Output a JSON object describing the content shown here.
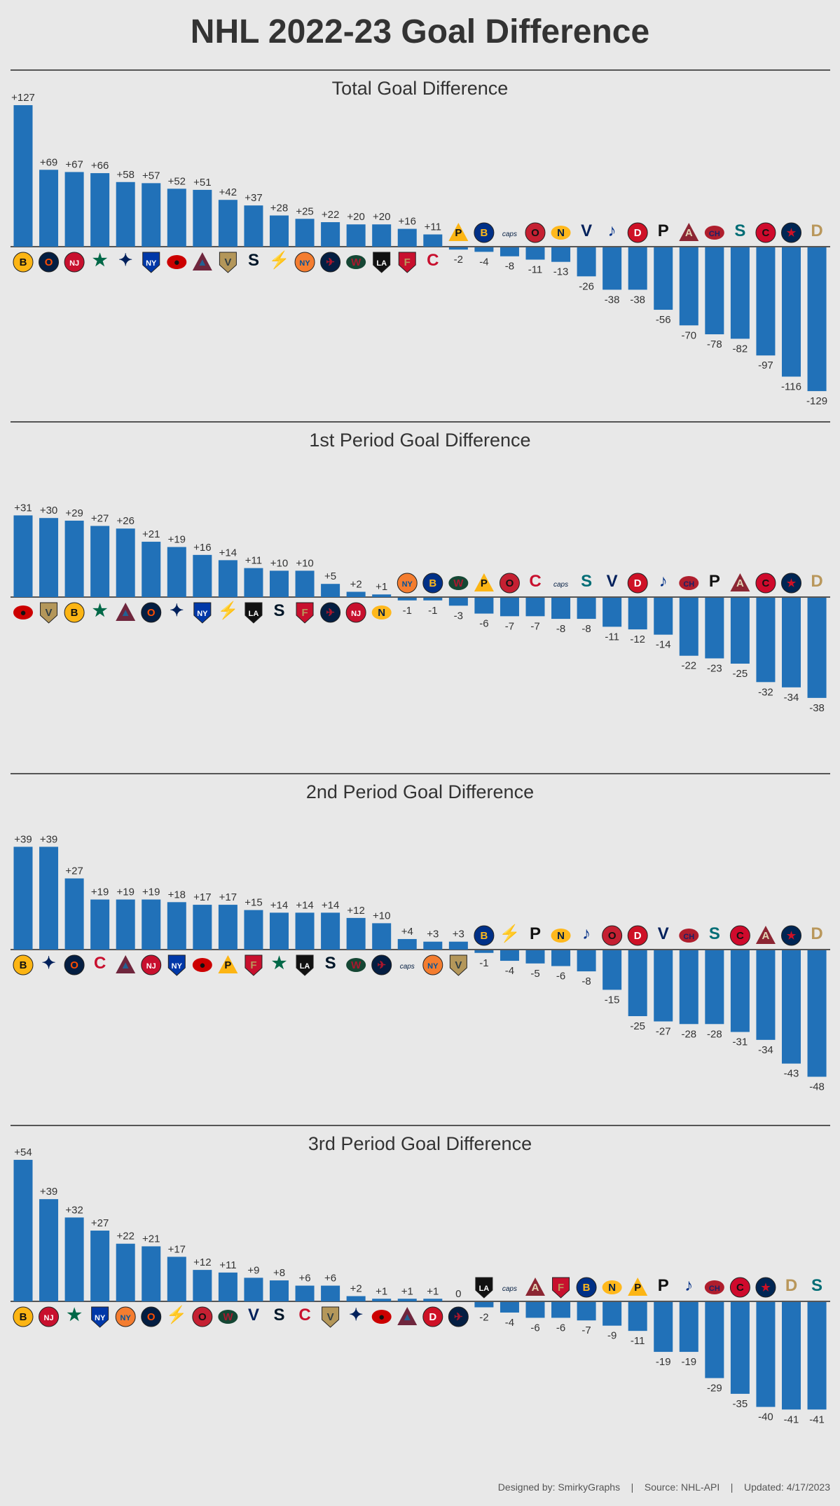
{
  "title": "NHL 2022-23 Goal Difference",
  "footer": {
    "designed_by": "Designed by: SmirkyGraphs",
    "source": "Source: NHL-API",
    "updated": "Updated: 4/17/2023",
    "separator": "|"
  },
  "colors": {
    "bar": "#2171b8",
    "axis": "#555555",
    "background": "#e8e8e8",
    "text": "#333333"
  },
  "team_logos": {
    "BOS": {
      "bg": "#fcb514",
      "fg": "#111111",
      "glyph": "B",
      "shape": "circle"
    },
    "EDM": {
      "bg": "#041e42",
      "fg": "#fc4c02",
      "glyph": "O",
      "shape": "circle"
    },
    "NJ": {
      "bg": "#c8102e",
      "fg": "#ffffff",
      "glyph": "NJ",
      "shape": "circle"
    },
    "DAL": {
      "bg": "#006847",
      "fg": "#ffffff",
      "glyph": "★",
      "shape": "star"
    },
    "TOR": {
      "bg": "#00205b",
      "fg": "#ffffff",
      "glyph": "✦",
      "shape": "leaf"
    },
    "NYR": {
      "bg": "#0038a8",
      "fg": "#ffffff",
      "glyph": "NY",
      "shape": "shield"
    },
    "CAR": {
      "bg": "#cc0000",
      "fg": "#111111",
      "glyph": "●",
      "shape": "ellipse"
    },
    "COL": {
      "bg": "#6f263d",
      "fg": "#236192",
      "glyph": "▲",
      "shape": "triangle"
    },
    "VGK": {
      "bg": "#b4975a",
      "fg": "#333f42",
      "glyph": "V",
      "shape": "shield"
    },
    "SEA": {
      "bg": "#001628",
      "fg": "#99d9d9",
      "glyph": "S",
      "shape": "letter"
    },
    "TBL": {
      "bg": "#002868",
      "fg": "#ffffff",
      "glyph": "⚡",
      "shape": "letter"
    },
    "NYI": {
      "bg": "#f47d30",
      "fg": "#00539b",
      "glyph": "NY",
      "shape": "circle"
    },
    "WPG": {
      "bg": "#041e42",
      "fg": "#ac162c",
      "glyph": "✈",
      "shape": "circle"
    },
    "MIN": {
      "bg": "#154734",
      "fg": "#a6192e",
      "glyph": "W",
      "shape": "ellipse"
    },
    "LAK": {
      "bg": "#111111",
      "fg": "#ffffff",
      "glyph": "LA",
      "shape": "shield"
    },
    "FLA": {
      "bg": "#c8102e",
      "fg": "#b9975b",
      "glyph": "F",
      "shape": "shield"
    },
    "CGY": {
      "bg": "#c8102e",
      "fg": "#f1be48",
      "glyph": "C",
      "shape": "letter"
    },
    "PIT": {
      "bg": "#fcb514",
      "fg": "#111111",
      "glyph": "P",
      "shape": "triangle"
    },
    "BUF": {
      "bg": "#003087",
      "fg": "#ffb81c",
      "glyph": "B",
      "shape": "circle"
    },
    "WSH": {
      "bg": "#ffffff",
      "fg": "#041e42",
      "glyph": "caps",
      "shape": "text"
    },
    "OTT": {
      "bg": "#c52032",
      "fg": "#111111",
      "glyph": "O",
      "shape": "circle"
    },
    "NSH": {
      "bg": "#ffb81c",
      "fg": "#041e42",
      "glyph": "N",
      "shape": "ellipse"
    },
    "VAN": {
      "bg": "#00205b",
      "fg": "#00843d",
      "glyph": "V",
      "shape": "letter"
    },
    "STL": {
      "bg": "#002f87",
      "fg": "#fcb514",
      "glyph": "♪",
      "shape": "letter"
    },
    "DET": {
      "bg": "#ce1126",
      "fg": "#ffffff",
      "glyph": "D",
      "shape": "circle"
    },
    "PHI": {
      "bg": "#111111",
      "fg": "#f74902",
      "glyph": "P",
      "shape": "letter"
    },
    "ARI": {
      "bg": "#8c2633",
      "fg": "#e2d6b5",
      "glyph": "A",
      "shape": "triangle"
    },
    "MTL": {
      "bg": "#af1e2d",
      "fg": "#192168",
      "glyph": "CH",
      "shape": "ellipse"
    },
    "SJS": {
      "bg": "#006d75",
      "fg": "#111111",
      "glyph": "S",
      "shape": "letter"
    },
    "CHI": {
      "bg": "#cf0a2c",
      "fg": "#111111",
      "glyph": "C",
      "shape": "circle"
    },
    "CBJ": {
      "bg": "#002654",
      "fg": "#ce1126",
      "glyph": "★",
      "shape": "circle"
    },
    "ANA": {
      "bg": "#b9975b",
      "fg": "#111111",
      "glyph": "D",
      "shape": "letter"
    }
  },
  "chart_data": [
    {
      "type": "bar",
      "title": "Total Goal Difference",
      "xlabel": "",
      "ylabel": "",
      "ylim": [
        -130,
        130
      ],
      "grid": false,
      "categories": [
        "BOS",
        "EDM",
        "NJ",
        "DAL",
        "TOR",
        "NYR",
        "CAR",
        "COL",
        "VGK",
        "SEA",
        "TBL",
        "NYI",
        "WPG",
        "MIN",
        "LAK",
        "FLA",
        "CGY",
        "PIT",
        "BUF",
        "WSH",
        "OTT",
        "NSH",
        "VAN",
        "STL",
        "DET",
        "PHI",
        "ARI",
        "MTL",
        "SJS",
        "CHI",
        "CBJ",
        "ANA"
      ],
      "values": [
        127,
        69,
        67,
        66,
        58,
        57,
        52,
        51,
        42,
        37,
        28,
        25,
        22,
        20,
        20,
        16,
        11,
        -2,
        -4,
        -8,
        -11,
        -13,
        -26,
        -38,
        -38,
        -56,
        -70,
        -78,
        -82,
        -97,
        -116,
        -129
      ]
    },
    {
      "type": "bar",
      "title": "1st Period Goal Difference",
      "xlabel": "",
      "ylabel": "",
      "ylim": [
        -54,
        54
      ],
      "grid": false,
      "categories": [
        "CAR",
        "VGK",
        "BOS",
        "DAL",
        "COL",
        "EDM",
        "TOR",
        "NYR",
        "TBL",
        "LAK",
        "SEA",
        "FLA",
        "WPG",
        "NJ",
        "NSH",
        "NYI",
        "BUF",
        "MIN",
        "PIT",
        "OTT",
        "CGY",
        "WSH",
        "SJS",
        "VAN",
        "DET",
        "STL",
        "MTL",
        "PHI",
        "ARI",
        "CHI",
        "CBJ",
        "ANA"
      ],
      "values": [
        31,
        30,
        29,
        27,
        26,
        21,
        19,
        16,
        14,
        11,
        10,
        10,
        5,
        2,
        1,
        -1,
        -1,
        -3,
        -6,
        -7,
        -7,
        -8,
        -8,
        -11,
        -12,
        -14,
        -22,
        -23,
        -25,
        -32,
        -34,
        -38
      ]
    },
    {
      "type": "bar",
      "title": "2nd Period Goal Difference",
      "xlabel": "",
      "ylabel": "",
      "ylim": [
        -54,
        54
      ],
      "grid": false,
      "categories": [
        "BOS",
        "TOR",
        "EDM",
        "CGY",
        "COL",
        "NJ",
        "NYR",
        "CAR",
        "PIT",
        "FLA",
        "DAL",
        "LAK",
        "SEA",
        "MIN",
        "WPG",
        "WSH",
        "NYI",
        "VGK",
        "BUF",
        "TBL",
        "PHI",
        "NSH",
        "STL",
        "OTT",
        "DET",
        "VAN",
        "MTL",
        "SJS",
        "CHI",
        "ARI",
        "CBJ",
        "ANA"
      ],
      "values": [
        39,
        39,
        27,
        19,
        19,
        19,
        18,
        17,
        17,
        15,
        14,
        14,
        14,
        12,
        10,
        4,
        3,
        3,
        -1,
        -4,
        -5,
        -6,
        -8,
        -15,
        -25,
        -27,
        -28,
        -28,
        -31,
        -34,
        -43,
        -48
      ]
    },
    {
      "type": "bar",
      "title": "3rd Period Goal Difference",
      "xlabel": "",
      "ylabel": "",
      "ylim": [
        -54,
        54
      ],
      "grid": false,
      "categories": [
        "BOS",
        "NJ",
        "DAL",
        "NYR",
        "NYI",
        "EDM",
        "TBL",
        "OTT",
        "MIN",
        "VAN",
        "SEA",
        "CGY",
        "VGK",
        "TOR",
        "CAR",
        "COL",
        "DET",
        "WPG",
        "LAK",
        "WSH",
        "ARI",
        "FLA",
        "BUF",
        "NSH",
        "PIT",
        "PHI",
        "STL",
        "MTL",
        "CHI",
        "CBJ",
        "ANA",
        "SJS"
      ],
      "values": [
        54,
        39,
        32,
        27,
        22,
        21,
        17,
        12,
        11,
        9,
        8,
        6,
        6,
        2,
        1,
        1,
        1,
        0,
        -2,
        -4,
        -6,
        -6,
        -7,
        -9,
        -11,
        -19,
        -19,
        -29,
        -35,
        -40,
        -41,
        -41
      ]
    }
  ]
}
